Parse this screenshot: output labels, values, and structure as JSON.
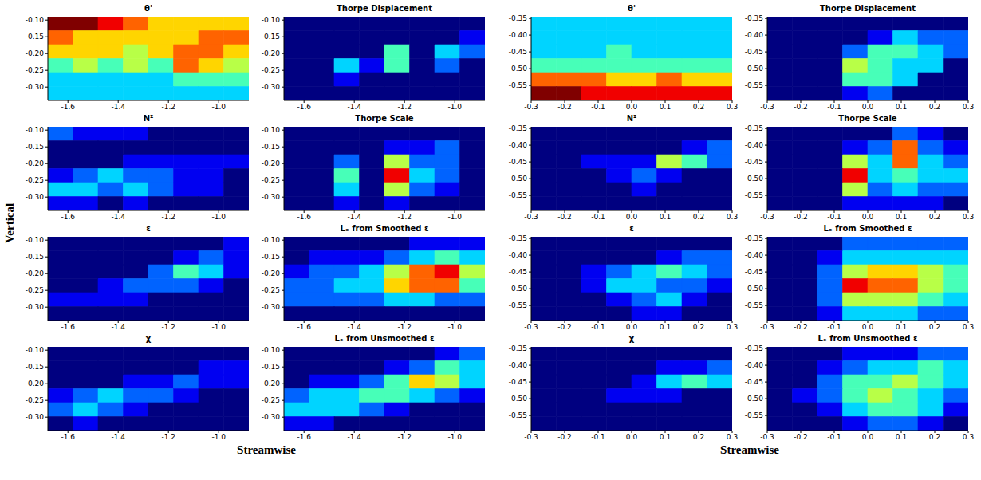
{
  "chart_data": [
    {
      "type": "heatmap",
      "xlabel": "Streamwise",
      "ylabel": "Vertical",
      "xlim": [
        -1.68,
        -0.88
      ],
      "xticks": [
        -1.6,
        -1.4,
        -1.2,
        {
          "value": -1.0,
          "label": "-1.0"
        }
      ],
      "ylim": [
        -0.34,
        -0.09
      ],
      "yticks": [
        {
          "value": -0.3,
          "label": "-0.30"
        },
        -0.25,
        {
          "value": -0.2,
          "label": "-0.20"
        },
        -0.15,
        {
          "value": -0.1,
          "label": "-0.10"
        }
      ],
      "clim": [
        0,
        9
      ],
      "panels": [
        {
          "title": "θ'",
          "cells": [
            [
              9,
              9,
              8,
              7,
              6,
              6,
              6,
              6
            ],
            [
              7,
              6,
              6,
              6,
              6,
              6,
              7,
              7
            ],
            [
              6,
              6,
              6,
              5,
              6,
              7,
              7,
              6
            ],
            [
              4,
              5,
              4,
              5,
              4,
              7,
              6,
              5
            ],
            [
              3,
              3,
              3,
              3,
              3,
              4,
              4,
              4
            ],
            [
              3,
              3,
              3,
              3,
              3,
              3,
              3,
              3
            ]
          ]
        },
        {
          "title": "Thorpe Displacement",
          "cells": [
            [
              0,
              0,
              0,
              0,
              0,
              0,
              0,
              0
            ],
            [
              0,
              0,
              0,
              0,
              0,
              0,
              0,
              1
            ],
            [
              0,
              0,
              0,
              0,
              4,
              0,
              3,
              2
            ],
            [
              0,
              0,
              3,
              1,
              4,
              0,
              2,
              0
            ],
            [
              0,
              0,
              1,
              0,
              0,
              0,
              0,
              0
            ],
            [
              0,
              0,
              0,
              0,
              0,
              0,
              0,
              0
            ]
          ]
        },
        {
          "title": "N²",
          "cells": [
            [
              2,
              1,
              1,
              1,
              0,
              0,
              0,
              0
            ],
            [
              0,
              0,
              0,
              0,
              0,
              0,
              0,
              0
            ],
            [
              0,
              0,
              0,
              1,
              1,
              1,
              1,
              1
            ],
            [
              1,
              2,
              3,
              2,
              2,
              1,
              1,
              0
            ],
            [
              3,
              3,
              2,
              3,
              2,
              1,
              1,
              0
            ],
            [
              1,
              1,
              0,
              1,
              0,
              0,
              0,
              0
            ]
          ]
        },
        {
          "title": "Thorpe Scale",
          "cells": [
            [
              0,
              0,
              0,
              0,
              0,
              0,
              0,
              0
            ],
            [
              0,
              0,
              0,
              0,
              1,
              1,
              2,
              0
            ],
            [
              0,
              0,
              2,
              0,
              5,
              2,
              2,
              0
            ],
            [
              0,
              0,
              4,
              0,
              8,
              3,
              2,
              0
            ],
            [
              0,
              0,
              3,
              0,
              5,
              2,
              1,
              0
            ],
            [
              0,
              0,
              1,
              0,
              1,
              0,
              0,
              0
            ]
          ]
        },
        {
          "title": "ε",
          "cells": [
            [
              0,
              0,
              0,
              0,
              0,
              0,
              0,
              1
            ],
            [
              0,
              0,
              0,
              0,
              0,
              1,
              2,
              1
            ],
            [
              0,
              0,
              0,
              0,
              2,
              4,
              3,
              1
            ],
            [
              0,
              0,
              1,
              2,
              2,
              2,
              1,
              0
            ],
            [
              1,
              1,
              1,
              1,
              0,
              0,
              0,
              0
            ],
            [
              0,
              0,
              0,
              0,
              0,
              0,
              0,
              0
            ]
          ]
        },
        {
          "title": "Lₒ from Smoothed ε",
          "cells": [
            [
              0,
              0,
              0,
              0,
              0,
              1,
              1,
              1
            ],
            [
              0,
              1,
              1,
              1,
              2,
              3,
              4,
              3
            ],
            [
              1,
              2,
              2,
              3,
              5,
              7,
              8,
              5
            ],
            [
              2,
              2,
              3,
              3,
              6,
              7,
              7,
              4
            ],
            [
              2,
              2,
              2,
              2,
              3,
              3,
              2,
              2
            ],
            [
              0,
              0,
              0,
              0,
              0,
              0,
              0,
              0
            ]
          ]
        },
        {
          "title": "χ",
          "cells": [
            [
              0,
              0,
              0,
              0,
              0,
              0,
              0,
              0
            ],
            [
              0,
              0,
              0,
              0,
              0,
              0,
              1,
              1
            ],
            [
              0,
              0,
              0,
              1,
              1,
              2,
              1,
              1
            ],
            [
              1,
              2,
              3,
              2,
              2,
              1,
              0,
              0
            ],
            [
              2,
              3,
              2,
              1,
              0,
              0,
              0,
              0
            ],
            [
              0,
              1,
              0,
              0,
              0,
              0,
              0,
              0
            ]
          ]
        },
        {
          "title": "Lₒ from Unsmoothed ε",
          "cells": [
            [
              0,
              0,
              0,
              0,
              0,
              0,
              1,
              2
            ],
            [
              0,
              0,
              0,
              0,
              1,
              2,
              4,
              3
            ],
            [
              0,
              1,
              1,
              2,
              4,
              6,
              5,
              3
            ],
            [
              2,
              3,
              3,
              4,
              4,
              3,
              2,
              1
            ],
            [
              3,
              3,
              3,
              2,
              1,
              0,
              0,
              0
            ],
            [
              1,
              1,
              0,
              0,
              0,
              0,
              0,
              0
            ]
          ]
        }
      ]
    },
    {
      "type": "heatmap",
      "xlabel": "Streamwise",
      "xlim": [
        -0.3,
        0.3
      ],
      "xticks": [
        -0.3,
        -0.2,
        -0.1,
        {
          "value": 0,
          "label": "0.0"
        },
        0.1,
        0.2,
        0.3
      ],
      "ylim": [
        -0.595,
        -0.345
      ],
      "yticks": [
        -0.55,
        {
          "value": -0.5,
          "label": "-0.50"
        },
        -0.45,
        {
          "value": -0.4,
          "label": "-0.40"
        },
        -0.35
      ],
      "clim": [
        0,
        9
      ],
      "panels": [
        {
          "title": "θ'",
          "cells": [
            [
              3,
              3,
              3,
              3,
              3,
              3,
              3,
              3
            ],
            [
              3,
              3,
              3,
              3,
              3,
              3,
              3,
              3
            ],
            [
              3,
              3,
              3,
              4,
              3,
              3,
              3,
              3
            ],
            [
              4,
              4,
              4,
              4,
              4,
              4,
              4,
              4
            ],
            [
              7,
              7,
              7,
              6,
              6,
              7,
              6,
              6
            ],
            [
              9,
              9,
              8,
              8,
              8,
              8,
              8,
              8
            ]
          ]
        },
        {
          "title": "Thorpe Displacement",
          "cells": [
            [
              0,
              0,
              0,
              0,
              0,
              0,
              0,
              0
            ],
            [
              0,
              0,
              0,
              0,
              1,
              3,
              2,
              2
            ],
            [
              0,
              0,
              0,
              2,
              4,
              4,
              3,
              2
            ],
            [
              0,
              0,
              0,
              5,
              4,
              3,
              3,
              0
            ],
            [
              0,
              0,
              0,
              4,
              4,
              3,
              0,
              0
            ],
            [
              0,
              0,
              0,
              1,
              2,
              0,
              0,
              0
            ]
          ]
        },
        {
          "title": "N²",
          "cells": [
            [
              0,
              0,
              0,
              0,
              0,
              0,
              0,
              0
            ],
            [
              0,
              0,
              0,
              0,
              0,
              0,
              1,
              2
            ],
            [
              0,
              0,
              1,
              1,
              1,
              5,
              4,
              2
            ],
            [
              0,
              0,
              0,
              1,
              2,
              1,
              0,
              0
            ],
            [
              0,
              0,
              0,
              0,
              1,
              0,
              0,
              0
            ],
            [
              0,
              0,
              0,
              0,
              0,
              0,
              0,
              0
            ]
          ]
        },
        {
          "title": "Thorpe Scale",
          "cells": [
            [
              0,
              0,
              0,
              0,
              0,
              2,
              1,
              0
            ],
            [
              0,
              0,
              0,
              1,
              2,
              7,
              2,
              1
            ],
            [
              0,
              0,
              0,
              5,
              3,
              7,
              3,
              2
            ],
            [
              0,
              0,
              0,
              8,
              3,
              4,
              3,
              3
            ],
            [
              0,
              0,
              0,
              5,
              2,
              3,
              2,
              2
            ],
            [
              0,
              0,
              0,
              1,
              1,
              1,
              1,
              0
            ]
          ]
        },
        {
          "title": "ε",
          "cells": [
            [
              0,
              0,
              0,
              0,
              0,
              0,
              0,
              0
            ],
            [
              0,
              0,
              0,
              0,
              0,
              1,
              2,
              2
            ],
            [
              0,
              0,
              1,
              2,
              3,
              4,
              3,
              2
            ],
            [
              0,
              0,
              1,
              3,
              3,
              2,
              2,
              1
            ],
            [
              0,
              0,
              0,
              1,
              2,
              3,
              1,
              0
            ],
            [
              0,
              0,
              0,
              0,
              1,
              1,
              0,
              0
            ]
          ]
        },
        {
          "title": "Lₒ from Smoothed ε",
          "cells": [
            [
              0,
              0,
              0,
              2,
              2,
              2,
              2,
              2
            ],
            [
              0,
              0,
              1,
              3,
              3,
              3,
              3,
              3
            ],
            [
              0,
              0,
              2,
              5,
              6,
              6,
              5,
              4
            ],
            [
              0,
              0,
              2,
              8,
              7,
              7,
              5,
              4
            ],
            [
              0,
              0,
              2,
              5,
              5,
              5,
              4,
              3
            ],
            [
              0,
              0,
              1,
              3,
              3,
              3,
              2,
              2
            ]
          ]
        },
        {
          "title": "χ",
          "cells": [
            [
              0,
              0,
              0,
              0,
              0,
              0,
              0,
              0
            ],
            [
              0,
              0,
              0,
              0,
              0,
              1,
              1,
              2
            ],
            [
              0,
              0,
              0,
              0,
              1,
              3,
              4,
              3
            ],
            [
              0,
              0,
              0,
              1,
              1,
              1,
              0,
              0
            ],
            [
              0,
              0,
              0,
              0,
              0,
              0,
              0,
              0
            ],
            [
              0,
              0,
              0,
              0,
              0,
              0,
              0,
              0
            ]
          ]
        },
        {
          "title": "Lₒ from Unsmoothed ε",
          "cells": [
            [
              0,
              0,
              0,
              1,
              1,
              1,
              2,
              2
            ],
            [
              0,
              0,
              1,
              2,
              3,
              3,
              4,
              3
            ],
            [
              0,
              0,
              2,
              4,
              4,
              5,
              4,
              3
            ],
            [
              0,
              1,
              2,
              4,
              5,
              4,
              3,
              2
            ],
            [
              0,
              0,
              1,
              3,
              4,
              4,
              3,
              1
            ],
            [
              0,
              0,
              0,
              1,
              2,
              2,
              1,
              0
            ]
          ]
        }
      ]
    }
  ]
}
